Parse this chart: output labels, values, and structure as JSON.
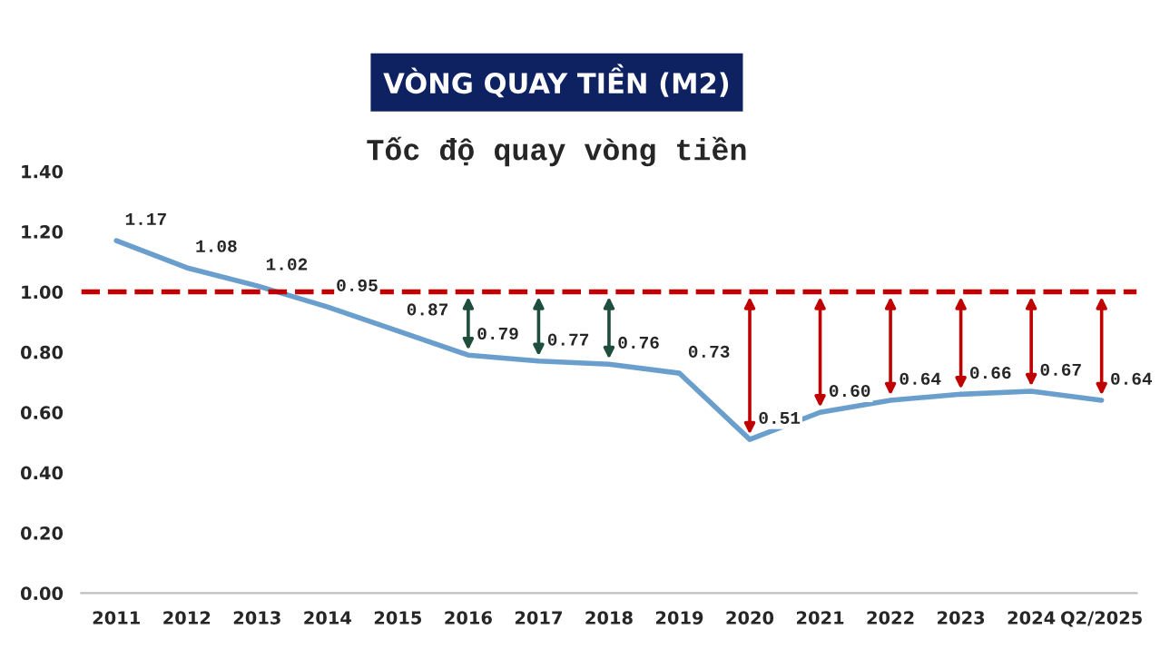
{
  "chart_data": {
    "type": "line",
    "title": "VÒNG QUAY TIỀN (M2)",
    "subtitle": "Tốc độ quay vòng tiền",
    "categories": [
      "2011",
      "2012",
      "2013",
      "2014",
      "2015",
      "2016",
      "2017",
      "2018",
      "2019",
      "2020",
      "2021",
      "2022",
      "2023",
      "2024",
      "Q2/2025"
    ],
    "series": [
      {
        "color": "#6a9fcd",
        "values": [
          1.17,
          1.08,
          1.02,
          0.95,
          0.87,
          0.79,
          0.77,
          0.76,
          0.73,
          0.51,
          0.6,
          0.64,
          0.66,
          0.67,
          0.64
        ],
        "value_labels": [
          "1.17",
          "1.08",
          "1.02",
          "0.95",
          "0.87",
          "0.79",
          "0.77",
          "0.76",
          "0.73",
          "0.51",
          "0.60",
          "0.64",
          "0.66",
          "0.67",
          "0.64"
        ]
      }
    ],
    "ylim": [
      0,
      1.4
    ],
    "yticks": [
      {
        "value": 0,
        "label": "0.00"
      },
      {
        "value": 0.2,
        "label": "0.20"
      },
      {
        "value": 0.4,
        "label": "0.40"
      },
      {
        "value": 0.6,
        "label": "0.60"
      },
      {
        "value": 0.8,
        "label": "0.80"
      },
      {
        "value": 1.0,
        "label": "1.00"
      },
      {
        "value": 1.2,
        "label": "1.20"
      },
      {
        "value": 1.4,
        "label": "1.40"
      }
    ],
    "ref_lines": [
      {
        "axis": "y",
        "value": 1.0,
        "color": "#c00000",
        "line_style": "dashed"
      }
    ],
    "grid": false,
    "marker": "none",
    "line_style": "solid"
  }
}
